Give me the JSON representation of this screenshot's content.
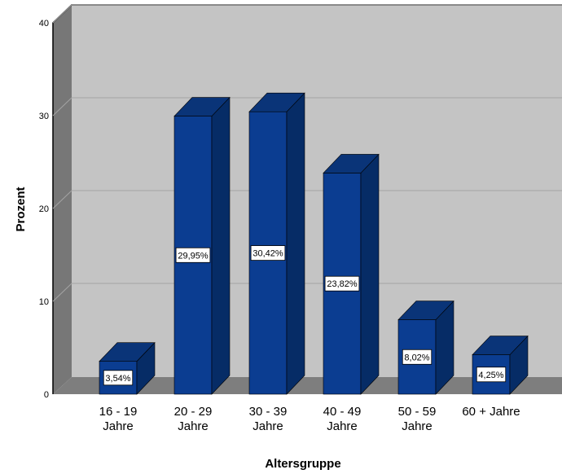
{
  "chart_data": {
    "type": "bar",
    "title": "",
    "xlabel": "Altersgruppe",
    "ylabel": "Prozent",
    "ylim": [
      0,
      40
    ],
    "yticks": [
      "0",
      "10",
      "20",
      "30",
      "40"
    ],
    "categories": [
      [
        "16 - 19",
        "Jahre"
      ],
      [
        "20 - 29",
        "Jahre"
      ],
      [
        "30 - 39",
        "Jahre"
      ],
      [
        "40 - 49",
        "Jahre"
      ],
      [
        "50 - 59",
        "Jahre"
      ],
      [
        "60 + Jahre"
      ]
    ],
    "values": [
      3.54,
      29.95,
      30.42,
      23.82,
      8.02,
      4.25
    ],
    "value_labels": [
      "3,54%",
      "29,95%",
      "30,42%",
      "23,82%",
      "8,02%",
      "4,25%"
    ],
    "grid": true,
    "style": "3d",
    "colors": {
      "bar_front": "#0b3d91",
      "bar_side": "#062c66",
      "bar_top": "#0a3478",
      "plot_back": "#c4c4c4",
      "plot_floor": "#7e7e7e",
      "plot_left_wall": "#777777",
      "gridline": "#a4a4a4"
    }
  }
}
